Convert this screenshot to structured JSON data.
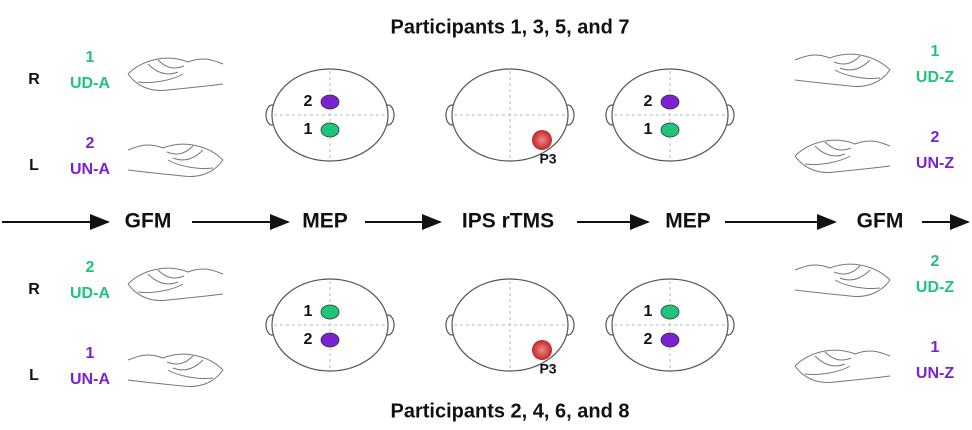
{
  "top_title": "Participants 1, 3, 5, and 7",
  "bottom_title": "Participants 2, 4, 6, and 8",
  "flow": [
    "GFM",
    "MEP",
    "IPS rTMS",
    "MEP",
    "GFM"
  ],
  "top": {
    "left": [
      {
        "side": "R",
        "number": "1",
        "label": "UD-A"
      },
      {
        "side": "L",
        "number": "2",
        "label": "UN-A"
      }
    ],
    "head_left": [
      "2",
      "1"
    ],
    "site": "P3",
    "head_right": [
      "2",
      "1"
    ],
    "right": [
      {
        "number": "1",
        "label": "UD-Z"
      },
      {
        "number": "2",
        "label": "UN-Z"
      }
    ]
  },
  "bottom": {
    "left": [
      {
        "side": "R",
        "number": "2",
        "label": "UD-A"
      },
      {
        "side": "L",
        "number": "1",
        "label": "UN-A"
      }
    ],
    "head_left": [
      "1",
      "2"
    ],
    "site": "P3",
    "head_right": [
      "1",
      "2"
    ],
    "right": [
      {
        "number": "2",
        "label": "UD-Z"
      },
      {
        "number": "1",
        "label": "UN-Z"
      }
    ]
  }
}
